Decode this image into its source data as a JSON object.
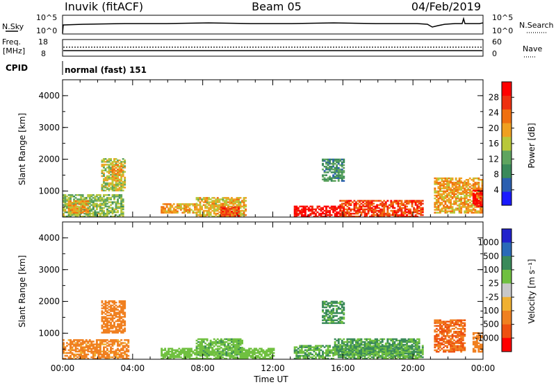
{
  "header": {
    "station": "Inuvik (fitACF)",
    "beam": "Beam 05",
    "date": "04/Feb/2019"
  },
  "top_panels": {
    "nsky_label": "N.Sky",
    "nsky_ticks": [
      "10^5",
      "10^0"
    ],
    "nsearch_label": "N.Search",
    "nsearch_ticks": [
      "10^5",
      "10^0"
    ],
    "freq_label": "Freq.",
    "freq_unit": "[MHz]",
    "freq_ticks": [
      "18",
      "8"
    ],
    "nave_label": "Nave",
    "nave_ticks": [
      "60",
      "0"
    ],
    "cpid_label": "CPID",
    "cpid_text": "normal (fast) 151"
  },
  "colors": {
    "power_scale": [
      "#1a1aff",
      "#2b5fb0",
      "#3a8a5a",
      "#5fa55f",
      "#b8c83a",
      "#f0a020",
      "#f07010",
      "#ee3010",
      "#ff0000"
    ],
    "velocity_scale": [
      "#2222cc",
      "#2a6ab8",
      "#3a8a5a",
      "#70c040",
      "#c8c8c8",
      "#f0b030",
      "#f08020",
      "#ee5010",
      "#ff0000"
    ],
    "ground": "#c0c0c0"
  },
  "chart_data": [
    {
      "type": "heatmap",
      "panel": "power",
      "ylabel": "Slant Range [km]",
      "yticks": [
        "1000",
        "2000",
        "3000",
        "4000"
      ],
      "ylim": [
        180,
        4500
      ],
      "colorbar_label": "Power [dB]",
      "colorbar_ticks": [
        "4",
        "8",
        "12",
        "16",
        "20",
        "24",
        "28"
      ],
      "colorbar_range": [
        0,
        32
      ],
      "blobs": [
        {
          "t0": 0.0,
          "t1": 3.5,
          "r0": 180,
          "r1": 900,
          "v": 14
        },
        {
          "t0": 0.3,
          "t1": 1.5,
          "r0": 300,
          "r1": 700,
          "v": 20
        },
        {
          "t0": 2.2,
          "t1": 3.6,
          "r0": 1000,
          "r1": 2000,
          "v": 16
        },
        {
          "t0": 2.8,
          "t1": 3.4,
          "r0": 1300,
          "r1": 1800,
          "v": 20
        },
        {
          "t0": 5.6,
          "t1": 7.6,
          "r0": 300,
          "r1": 600,
          "v": 20
        },
        {
          "t0": 7.6,
          "t1": 10.4,
          "r0": 180,
          "r1": 800,
          "v": 18
        },
        {
          "t0": 9.0,
          "t1": 10.0,
          "r0": 200,
          "r1": 500,
          "v": 26
        },
        {
          "t0": 13.2,
          "t1": 16.0,
          "r0": 180,
          "r1": 500,
          "v": 30
        },
        {
          "t0": 15.8,
          "t1": 20.6,
          "r0": 180,
          "r1": 700,
          "v": 26
        },
        {
          "t0": 14.8,
          "t1": 16.0,
          "r0": 1300,
          "r1": 2000,
          "v": 10
        },
        {
          "t0": 21.2,
          "t1": 24.0,
          "r0": 300,
          "r1": 1400,
          "v": 20
        },
        {
          "t0": 23.4,
          "t1": 24.0,
          "r0": 500,
          "r1": 1000,
          "v": 30
        }
      ]
    },
    {
      "type": "heatmap",
      "panel": "velocity",
      "ylabel": "Slant Range [km]",
      "yticks": [
        "1000",
        "2000",
        "3000",
        "4000"
      ],
      "ylim": [
        180,
        4500
      ],
      "colorbar_label": "Velocity [m s⁻¹]",
      "colorbar_ticks": [
        "1000",
        "500",
        "100",
        "25",
        "-25",
        "-100",
        "-500",
        "-1000"
      ],
      "xlabel": "Time UT",
      "xticks": [
        "00:00",
        "04:00",
        "08:00",
        "12:00",
        "16:00",
        "20:00",
        "00:00"
      ],
      "xlim": [
        0,
        24
      ],
      "blobs": [
        {
          "t0": 0.0,
          "t1": 3.8,
          "r0": 180,
          "r1": 800,
          "v": -150
        },
        {
          "t0": 2.2,
          "t1": 3.6,
          "r0": 1000,
          "r1": 2000,
          "v": -300
        },
        {
          "t0": 5.6,
          "t1": 12.0,
          "r0": 180,
          "r1": 500,
          "v": 60
        },
        {
          "t0": 7.6,
          "t1": 10.2,
          "r0": 300,
          "r1": 800,
          "v": 80
        },
        {
          "t0": 13.2,
          "t1": 20.6,
          "r0": 180,
          "r1": 600,
          "v": 90
        },
        {
          "t0": 15.5,
          "t1": 20.4,
          "r0": 300,
          "r1": 800,
          "v": 110
        },
        {
          "t0": 14.8,
          "t1": 16.0,
          "r0": 1300,
          "r1": 2000,
          "v": 120
        },
        {
          "t0": 21.2,
          "t1": 23.0,
          "r0": 400,
          "r1": 1400,
          "v": -500
        },
        {
          "t0": 23.4,
          "t1": 24.0,
          "r0": 400,
          "r1": 1000,
          "v": -300
        }
      ]
    }
  ]
}
